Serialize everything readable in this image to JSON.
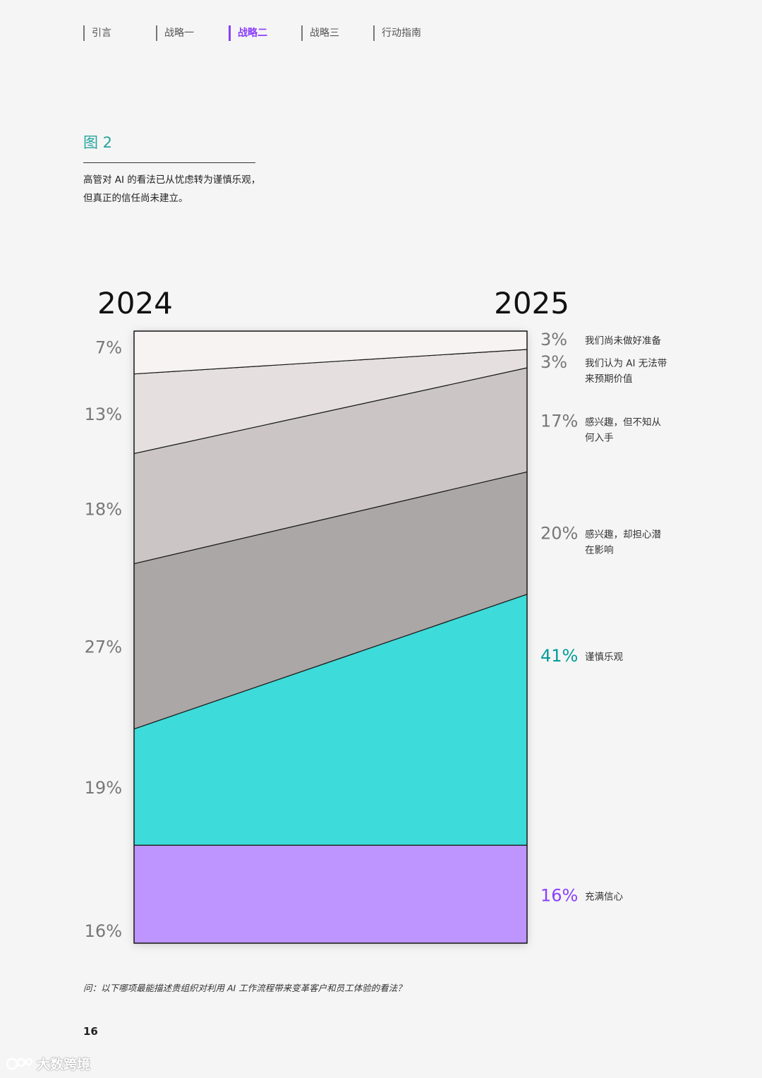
{
  "nav": {
    "items": [
      {
        "label": "引言",
        "active": false
      },
      {
        "label": "战略一",
        "active": false
      },
      {
        "label": "战略二",
        "active": true
      },
      {
        "label": "战略三",
        "active": false
      },
      {
        "label": "行动指南",
        "active": false
      }
    ]
  },
  "figure": {
    "label": "图 2",
    "caption_line1": "高管对 AI 的看法已从忧虑转为谨慎乐观，",
    "caption_line2": "但真正的信任尚未建立。"
  },
  "chart_data": {
    "type": "area",
    "x": [
      "2024",
      "2025"
    ],
    "stack_order": "bottom-to-top",
    "series": [
      {
        "name": "充满信心",
        "values": [
          16,
          16
        ],
        "color": "#be95ff"
      },
      {
        "name": "谨慎乐观",
        "values": [
          19,
          41
        ],
        "color": "#3ddbd9"
      },
      {
        "name": "感兴趣，却担心潜在影响",
        "values": [
          27,
          20
        ],
        "color": "#aba7a6"
      },
      {
        "name": "感兴趣，但不知从何入手",
        "values": [
          18,
          17
        ],
        "color": "#cbc6c5"
      },
      {
        "name": "我们认为 AI 无法带来预期价值",
        "values": [
          13,
          3
        ],
        "color": "#e5e0df"
      },
      {
        "name": "我们尚未做好准备",
        "values": [
          7,
          3
        ],
        "color": "#f7f3f2"
      }
    ],
    "legend_lines": [
      [
        "充满信心"
      ],
      [
        "谨慎乐观"
      ],
      [
        "感兴趣，却担心潜",
        "在影响"
      ],
      [
        "感兴趣，但不知从",
        "何入手"
      ],
      [
        "我们认为 AI 无法带",
        "来预期价值"
      ],
      [
        "我们尚未做好准备"
      ]
    ],
    "value_colors_2025": [
      "#8a3ffc",
      "#009d9a",
      "#777777",
      "#777777",
      "#777777",
      "#777777"
    ],
    "ylim": [
      0,
      100
    ],
    "legend_position": "right"
  },
  "question": "问：以下哪项最能描述贵组织对利用 AI 工作流程带来变革客户和员工体验的看法？",
  "page_number": "16",
  "watermark": "大数跨境"
}
